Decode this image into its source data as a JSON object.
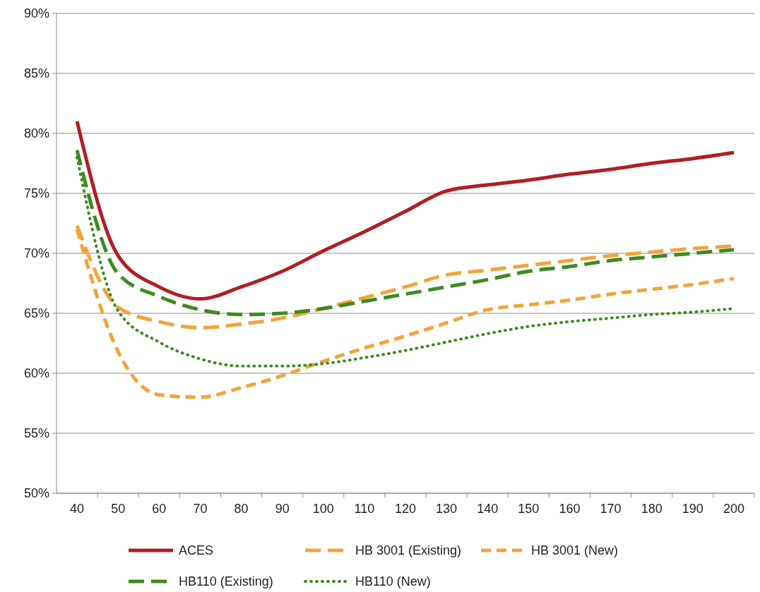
{
  "chart_data": {
    "type": "line",
    "categories": [
      "40",
      "50",
      "60",
      "70",
      "80",
      "90",
      "100",
      "110",
      "120",
      "130",
      "140",
      "150",
      "160",
      "170",
      "180",
      "190",
      "200"
    ],
    "ylim": [
      50,
      90
    ],
    "yticks": [
      {
        "value": 50,
        "label": "50%"
      },
      {
        "value": 55,
        "label": "55%"
      },
      {
        "value": 60,
        "label": "60%"
      },
      {
        "value": 65,
        "label": "65%"
      },
      {
        "value": 70,
        "label": "70%"
      },
      {
        "value": 75,
        "label": "75%"
      },
      {
        "value": 80,
        "label": "80%"
      },
      {
        "value": 85,
        "label": "85%"
      },
      {
        "value": 90,
        "label": "90%"
      }
    ],
    "grid": "y",
    "legend": "bottom",
    "marker": "none",
    "series": [
      {
        "name": "ACES",
        "color": "#b01f24",
        "line_style": "solid",
        "values": [
          81.0,
          69.8,
          67.2,
          66.2,
          67.2,
          68.5,
          70.2,
          71.8,
          73.5,
          75.2,
          75.7,
          76.1,
          76.6,
          77.0,
          77.5,
          77.9,
          78.4
        ]
      },
      {
        "name": "HB 3001 (Existing)",
        "color": "#f2a43a",
        "line_style": "dashed",
        "values": [
          72.3,
          65.5,
          64.3,
          63.8,
          64.1,
          64.6,
          65.4,
          66.3,
          67.2,
          68.2,
          68.6,
          69.0,
          69.4,
          69.8,
          70.1,
          70.4,
          70.6
        ]
      },
      {
        "name": "HB 3001 (New)",
        "color": "#f2a43a",
        "line_style": "dashed",
        "values": [
          72.0,
          61.8,
          58.2,
          58.0,
          58.8,
          59.8,
          61.0,
          62.1,
          63.1,
          64.2,
          65.3,
          65.7,
          66.1,
          66.6,
          67.0,
          67.4,
          67.9
        ]
      },
      {
        "name": "HB110 (Existing)",
        "color": "#3d8b1f",
        "line_style": "dashed",
        "values": [
          78.6,
          68.3,
          66.4,
          65.3,
          64.9,
          65.0,
          65.4,
          66.0,
          66.6,
          67.2,
          67.8,
          68.5,
          68.9,
          69.4,
          69.7,
          70.0,
          70.3
        ]
      },
      {
        "name": "HB110 (New)",
        "color": "#3d8b1f",
        "line_style": "dotted",
        "values": [
          78.0,
          65.2,
          62.6,
          61.2,
          60.6,
          60.6,
          60.8,
          61.3,
          61.9,
          62.6,
          63.3,
          63.9,
          64.3,
          64.6,
          64.9,
          65.1,
          65.4
        ]
      }
    ]
  }
}
